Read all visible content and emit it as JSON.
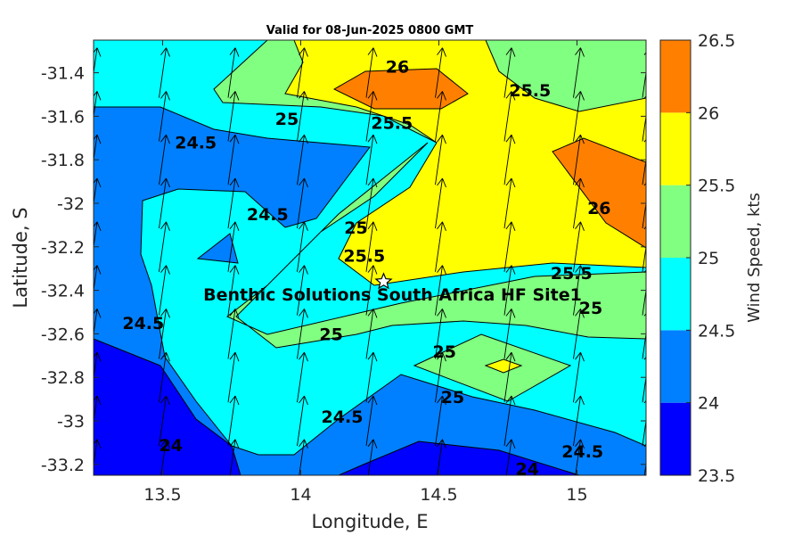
{
  "chart_data": {
    "type": "heatmap",
    "subtype": "filled contour with wind vectors",
    "title": "Valid for 08-Jun-2025 0800 GMT",
    "xlabel": "Longitude, E",
    "ylabel": "Latitude, S",
    "xlim": [
      13.25,
      15.25
    ],
    "ylim": [
      -33.25,
      -31.25
    ],
    "xticks": [
      "13.5",
      "14",
      "14.5",
      "15"
    ],
    "yticks": [
      "-31.4",
      "-31.6",
      "-31.8",
      "-32",
      "-32.2",
      "-32.4",
      "-32.6",
      "-32.8",
      "-33",
      "-33.2"
    ],
    "colorbar": {
      "label": "Wind Speed, kts",
      "levels": [
        23.5,
        24,
        24.5,
        25,
        25.5,
        26,
        26.5
      ],
      "tick_labels": [
        "23.5",
        "24",
        "24.5",
        "25",
        "25.5",
        "26",
        "26.5"
      ],
      "colors": [
        "#0000ff",
        "#0080ff",
        "#00ffff",
        "#80ff80",
        "#ffff00",
        "#ff8000"
      ]
    },
    "contour_labels": [
      {
        "text": "26",
        "lon": 14.35,
        "lat": -31.37
      },
      {
        "text": "25.5",
        "lon": 14.83,
        "lat": -31.48
      },
      {
        "text": "25",
        "lon": 13.95,
        "lat": -31.61
      },
      {
        "text": "25.5",
        "lon": 14.33,
        "lat": -31.63
      },
      {
        "text": "24.5",
        "lon": 13.62,
        "lat": -31.72
      },
      {
        "text": "24.5",
        "lon": 13.88,
        "lat": -32.05
      },
      {
        "text": "25",
        "lon": 14.2,
        "lat": -32.11
      },
      {
        "text": "25.5",
        "lon": 14.23,
        "lat": -32.24
      },
      {
        "text": "26",
        "lon": 15.08,
        "lat": -32.02
      },
      {
        "text": "25.5",
        "lon": 14.98,
        "lat": -32.32
      },
      {
        "text": "25",
        "lon": 15.05,
        "lat": -32.48
      },
      {
        "text": "24.5",
        "lon": 13.43,
        "lat": -32.55
      },
      {
        "text": "25",
        "lon": 14.11,
        "lat": -32.6
      },
      {
        "text": "25",
        "lon": 14.52,
        "lat": -32.68
      },
      {
        "text": "25",
        "lon": 14.55,
        "lat": -32.89
      },
      {
        "text": "24.5",
        "lon": 14.15,
        "lat": -32.98
      },
      {
        "text": "24",
        "lon": 13.53,
        "lat": -33.11
      },
      {
        "text": "24.5",
        "lon": 15.02,
        "lat": -33.14
      },
      {
        "text": "24",
        "lon": 14.82,
        "lat": -33.22
      }
    ],
    "wind_vectors": {
      "lons": [
        13.25,
        13.5,
        13.75,
        14.0,
        14.25,
        14.5,
        14.75,
        15.0,
        15.25
      ],
      "lats": [
        -31.4,
        -31.6,
        -31.8,
        -32.0,
        -32.2,
        -32.4,
        -32.6,
        -32.8,
        -33.0,
        -33.2
      ],
      "direction": "toward north-northwest"
    },
    "site": {
      "name": "Benthic Solutions South Africa HF Site1",
      "lon": 14.3,
      "lat": -32.36
    }
  }
}
